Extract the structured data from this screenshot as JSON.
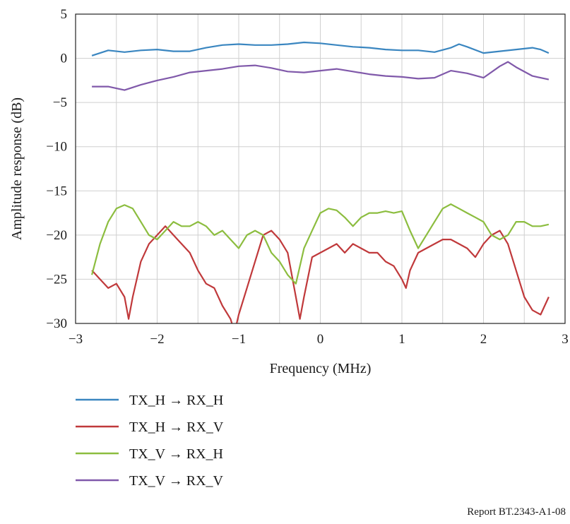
{
  "chart_data": {
    "type": "line",
    "xlabel": "Frequency (MHz)",
    "ylabel": "Amplitude response (dB)",
    "xlim": [
      -3,
      3
    ],
    "ylim": [
      -30,
      5
    ],
    "xticks": [
      -3,
      -2,
      -1,
      0,
      1,
      2,
      3
    ],
    "xtick_labels": [
      "−3",
      "−2",
      "−1",
      "0",
      "1",
      "2",
      "3"
    ],
    "yticks": [
      5,
      0,
      -5,
      -10,
      -15,
      -20,
      -25,
      -30
    ],
    "ytick_labels": [
      "5",
      "0",
      "−5",
      "−10",
      "−15",
      "−20",
      "−25",
      "−30"
    ],
    "grid": true,
    "legend_position": "below",
    "series": [
      {
        "name": "TX_H → RX_H",
        "color": "#3a86c0",
        "x": [
          -2.8,
          -2.6,
          -2.4,
          -2.2,
          -2.0,
          -1.8,
          -1.6,
          -1.4,
          -1.2,
          -1.0,
          -0.8,
          -0.6,
          -0.4,
          -0.2,
          0.0,
          0.2,
          0.4,
          0.6,
          0.8,
          1.0,
          1.2,
          1.4,
          1.6,
          1.7,
          1.8,
          2.0,
          2.2,
          2.4,
          2.6,
          2.7,
          2.8
        ],
        "y": [
          0.3,
          0.9,
          0.7,
          0.9,
          1.0,
          0.8,
          0.8,
          1.2,
          1.5,
          1.6,
          1.5,
          1.5,
          1.6,
          1.8,
          1.7,
          1.5,
          1.3,
          1.2,
          1.0,
          0.9,
          0.9,
          0.7,
          1.2,
          1.6,
          1.3,
          0.6,
          0.8,
          1.0,
          1.2,
          1.0,
          0.6
        ]
      },
      {
        "name": "TX_H → RX_V",
        "color": "#c0393b",
        "x": [
          -2.8,
          -2.7,
          -2.6,
          -2.5,
          -2.4,
          -2.35,
          -2.3,
          -2.2,
          -2.1,
          -2.0,
          -1.9,
          -1.8,
          -1.7,
          -1.6,
          -1.5,
          -1.4,
          -1.3,
          -1.2,
          -1.1,
          -1.05,
          -1.0,
          -0.9,
          -0.8,
          -0.7,
          -0.6,
          -0.5,
          -0.4,
          -0.3,
          -0.25,
          -0.2,
          -0.1,
          0.0,
          0.1,
          0.2,
          0.3,
          0.4,
          0.5,
          0.6,
          0.7,
          0.8,
          0.9,
          1.0,
          1.05,
          1.1,
          1.2,
          1.3,
          1.4,
          1.5,
          1.6,
          1.7,
          1.8,
          1.9,
          2.0,
          2.1,
          2.2,
          2.3,
          2.4,
          2.5,
          2.6,
          2.7,
          2.8
        ],
        "y": [
          -24,
          -25,
          -26,
          -25.5,
          -27,
          -29.5,
          -27,
          -23,
          -21,
          -20,
          -19,
          -20,
          -21,
          -22,
          -24,
          -25.5,
          -26,
          -28,
          -29.5,
          -31,
          -29,
          -26,
          -23,
          -20,
          -19.5,
          -20.5,
          -22,
          -27,
          -29.5,
          -27,
          -22.5,
          -22,
          -21.5,
          -21,
          -22,
          -21,
          -21.5,
          -22,
          -22,
          -23,
          -23.5,
          -25,
          -26,
          -24,
          -22,
          -21.5,
          -21,
          -20.5,
          -20.5,
          -21,
          -21.5,
          -22.5,
          -21,
          -20,
          -19.5,
          -21,
          -24,
          -27,
          -28.5,
          -29,
          -27
        ]
      },
      {
        "name": "TX_V → RX_H",
        "color": "#8cbd3f",
        "x": [
          -2.8,
          -2.7,
          -2.6,
          -2.5,
          -2.4,
          -2.3,
          -2.2,
          -2.1,
          -2.0,
          -1.9,
          -1.8,
          -1.7,
          -1.6,
          -1.5,
          -1.4,
          -1.3,
          -1.2,
          -1.1,
          -1.0,
          -0.9,
          -0.8,
          -0.7,
          -0.6,
          -0.5,
          -0.4,
          -0.3,
          -0.2,
          -0.1,
          0.0,
          0.1,
          0.2,
          0.3,
          0.4,
          0.5,
          0.6,
          0.7,
          0.8,
          0.9,
          1.0,
          1.1,
          1.2,
          1.3,
          1.4,
          1.5,
          1.6,
          1.7,
          1.8,
          1.9,
          2.0,
          2.1,
          2.2,
          2.3,
          2.4,
          2.5,
          2.6,
          2.7,
          2.8
        ],
        "y": [
          -24.5,
          -21,
          -18.5,
          -17,
          -16.6,
          -17,
          -18.5,
          -20,
          -20.5,
          -19.5,
          -18.5,
          -19,
          -19,
          -18.5,
          -19,
          -20,
          -19.5,
          -20.5,
          -21.5,
          -20,
          -19.5,
          -20,
          -22,
          -23,
          -24.5,
          -25.5,
          -21.5,
          -19.5,
          -17.5,
          -17,
          -17.2,
          -18,
          -19,
          -18,
          -17.5,
          -17.5,
          -17.3,
          -17.5,
          -17.3,
          -19.5,
          -21.5,
          -20,
          -18.5,
          -17,
          -16.5,
          -17,
          -17.5,
          -18,
          -18.5,
          -20,
          -20.5,
          -20,
          -18.5,
          -18.5,
          -19,
          -19,
          -18.8
        ]
      },
      {
        "name": "TX_V → RX_V",
        "color": "#8059aa",
        "x": [
          -2.8,
          -2.6,
          -2.4,
          -2.2,
          -2.0,
          -1.8,
          -1.6,
          -1.4,
          -1.2,
          -1.0,
          -0.8,
          -0.6,
          -0.4,
          -0.2,
          0.0,
          0.2,
          0.4,
          0.6,
          0.8,
          1.0,
          1.2,
          1.4,
          1.6,
          1.8,
          2.0,
          2.2,
          2.3,
          2.4,
          2.6,
          2.8
        ],
        "y": [
          -3.2,
          -3.2,
          -3.6,
          -3.0,
          -2.5,
          -2.1,
          -1.6,
          -1.4,
          -1.2,
          -0.9,
          -0.8,
          -1.1,
          -1.5,
          -1.6,
          -1.4,
          -1.2,
          -1.5,
          -1.8,
          -2.0,
          -2.1,
          -2.3,
          -2.2,
          -1.4,
          -1.7,
          -2.2,
          -0.9,
          -0.4,
          -1.0,
          -2.0,
          -2.4
        ]
      }
    ]
  },
  "report_label": "Report BT.2343-A1-08"
}
